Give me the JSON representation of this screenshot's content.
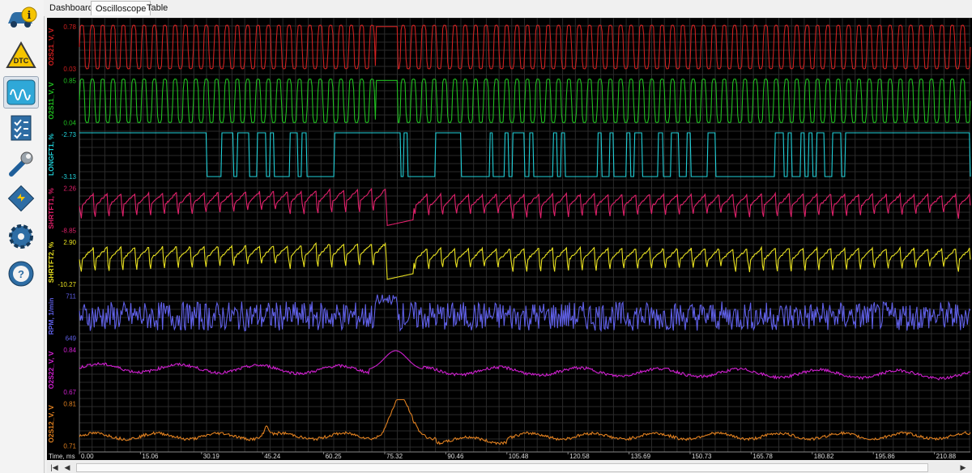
{
  "tabs": [
    {
      "label": "Dashboard",
      "active": false
    },
    {
      "label": "Oscilloscope",
      "active": true
    },
    {
      "label": "Table",
      "active": false
    }
  ],
  "sidebar": {
    "items": [
      {
        "name": "info",
        "icon": "car-info-icon",
        "label": ""
      },
      {
        "name": "dtc",
        "icon": "dtc-warning-icon",
        "label": "DTC"
      },
      {
        "name": "oscilloscope",
        "icon": "oscilloscope-icon",
        "label": "",
        "active": true
      },
      {
        "name": "checklist",
        "icon": "checklist-icon",
        "label": ""
      },
      {
        "name": "tools",
        "icon": "wrench-icon",
        "label": ""
      },
      {
        "name": "ecu",
        "icon": "chip-icon",
        "label": ""
      },
      {
        "name": "settings",
        "icon": "gear-icon",
        "label": ""
      },
      {
        "name": "help",
        "icon": "help-icon",
        "label": ""
      }
    ]
  },
  "scope": {
    "background": "#000000",
    "grid_color": "#2a2a2a",
    "time_axis_label": "Time, ms",
    "time_ticks": [
      "0.00",
      "15.06",
      "30.19",
      "45.24",
      "60.25",
      "75.32",
      "90.46",
      "105.48",
      "120.58",
      "135.69",
      "150.73",
      "165.78",
      "180.82",
      "195.86",
      "210.88"
    ],
    "channels": [
      {
        "name": "O2S21_V, V",
        "max": "0.78",
        "min": "0.03",
        "color": "#d02020",
        "shape": "square-osc"
      },
      {
        "name": "O2S11_V, V",
        "max": "0.85",
        "min": "0.04",
        "color": "#20c020",
        "shape": "square-osc"
      },
      {
        "name": "LONGFT1, %",
        "max": "-2.73",
        "min": "-3.13",
        "color": "#20d0d8",
        "shape": "binary"
      },
      {
        "name": "SHRTFT1, %",
        "max": "2.26",
        "min": "-8.85",
        "color": "#e0206a",
        "shape": "sawtooth"
      },
      {
        "name": "SHRTFT2, %",
        "max": "2.90",
        "min": "-10.27",
        "color": "#e8e020",
        "shape": "sawtooth"
      },
      {
        "name": "RPM, 1/min",
        "max": "711",
        "min": "649",
        "color": "#6060e8",
        "shape": "noise"
      },
      {
        "name": "O2S22_V, V",
        "max": "0.84",
        "min": "0.67",
        "color": "#d020d0",
        "shape": "smooth"
      },
      {
        "name": "O2S12_V, V",
        "max": "0.81",
        "min": "0.71",
        "color": "#e08020",
        "shape": "smooth-low"
      }
    ]
  },
  "scrollbar": {
    "first_label": "|◀",
    "prev_label": "◀",
    "next_label": "▶"
  }
}
